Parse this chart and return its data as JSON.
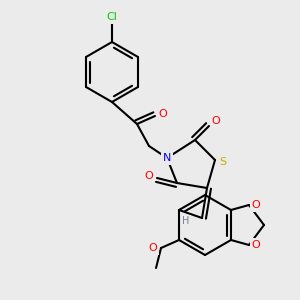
{
  "background_color": "#ebebeb",
  "atom_colors": {
    "C": "#000000",
    "N": "#0000ff",
    "O": "#ff0000",
    "S": "#ccaa00",
    "Cl": "#00cc00",
    "H": "#708090"
  },
  "bond_color": "#000000",
  "bond_width": 1.5
}
